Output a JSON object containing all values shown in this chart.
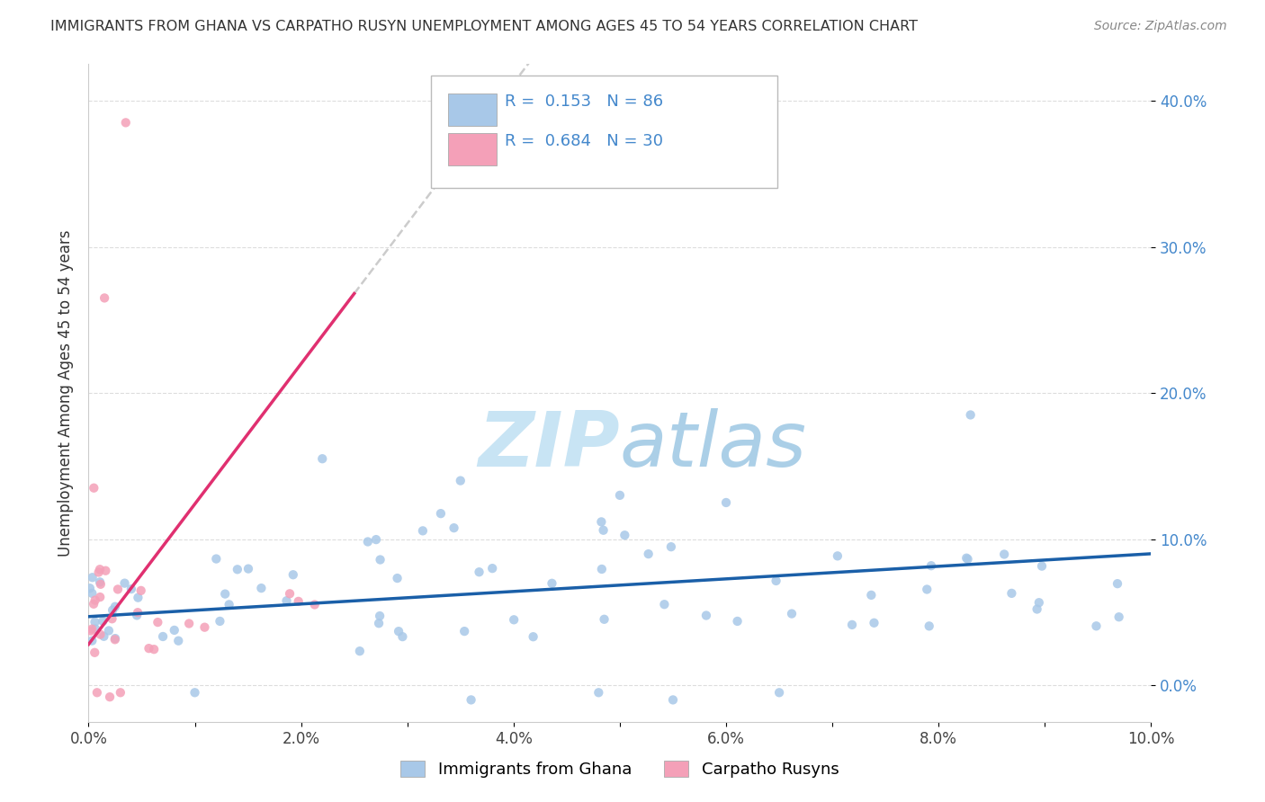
{
  "title": "IMMIGRANTS FROM GHANA VS CARPATHO RUSYN UNEMPLOYMENT AMONG AGES 45 TO 54 YEARS CORRELATION CHART",
  "source": "Source: ZipAtlas.com",
  "ylabel": "Unemployment Among Ages 45 to 54 years",
  "legend_label1": "Immigrants from Ghana",
  "legend_label2": "Carpatho Rusyns",
  "R1": 0.153,
  "N1": 86,
  "R2": 0.684,
  "N2": 30,
  "color1": "#a8c8e8",
  "color2": "#f4a0b8",
  "line_color1": "#1a5fa8",
  "line_color2": "#e03070",
  "dash_color": "#cccccc",
  "watermark_color": "#c8e4f4",
  "grid_color": "#dddddd",
  "ytick_color": "#4488cc",
  "title_color": "#333333",
  "source_color": "#888888",
  "background_color": "#ffffff",
  "xlim": [
    0.0,
    0.1
  ],
  "ylim": [
    -0.025,
    0.425
  ],
  "xticks": [
    0.0,
    0.01,
    0.02,
    0.03,
    0.04,
    0.05,
    0.06,
    0.07,
    0.08,
    0.09,
    0.1
  ],
  "xtick_labels": [
    "0.0%",
    "",
    "2.0%",
    "",
    "4.0%",
    "",
    "6.0%",
    "",
    "8.0%",
    "",
    "10.0%"
  ],
  "yticks": [
    0.0,
    0.1,
    0.2,
    0.3,
    0.4
  ],
  "ytick_labels": [
    "0.0%",
    "10.0%",
    "20.0%",
    "30.0%",
    "40.0%"
  ]
}
